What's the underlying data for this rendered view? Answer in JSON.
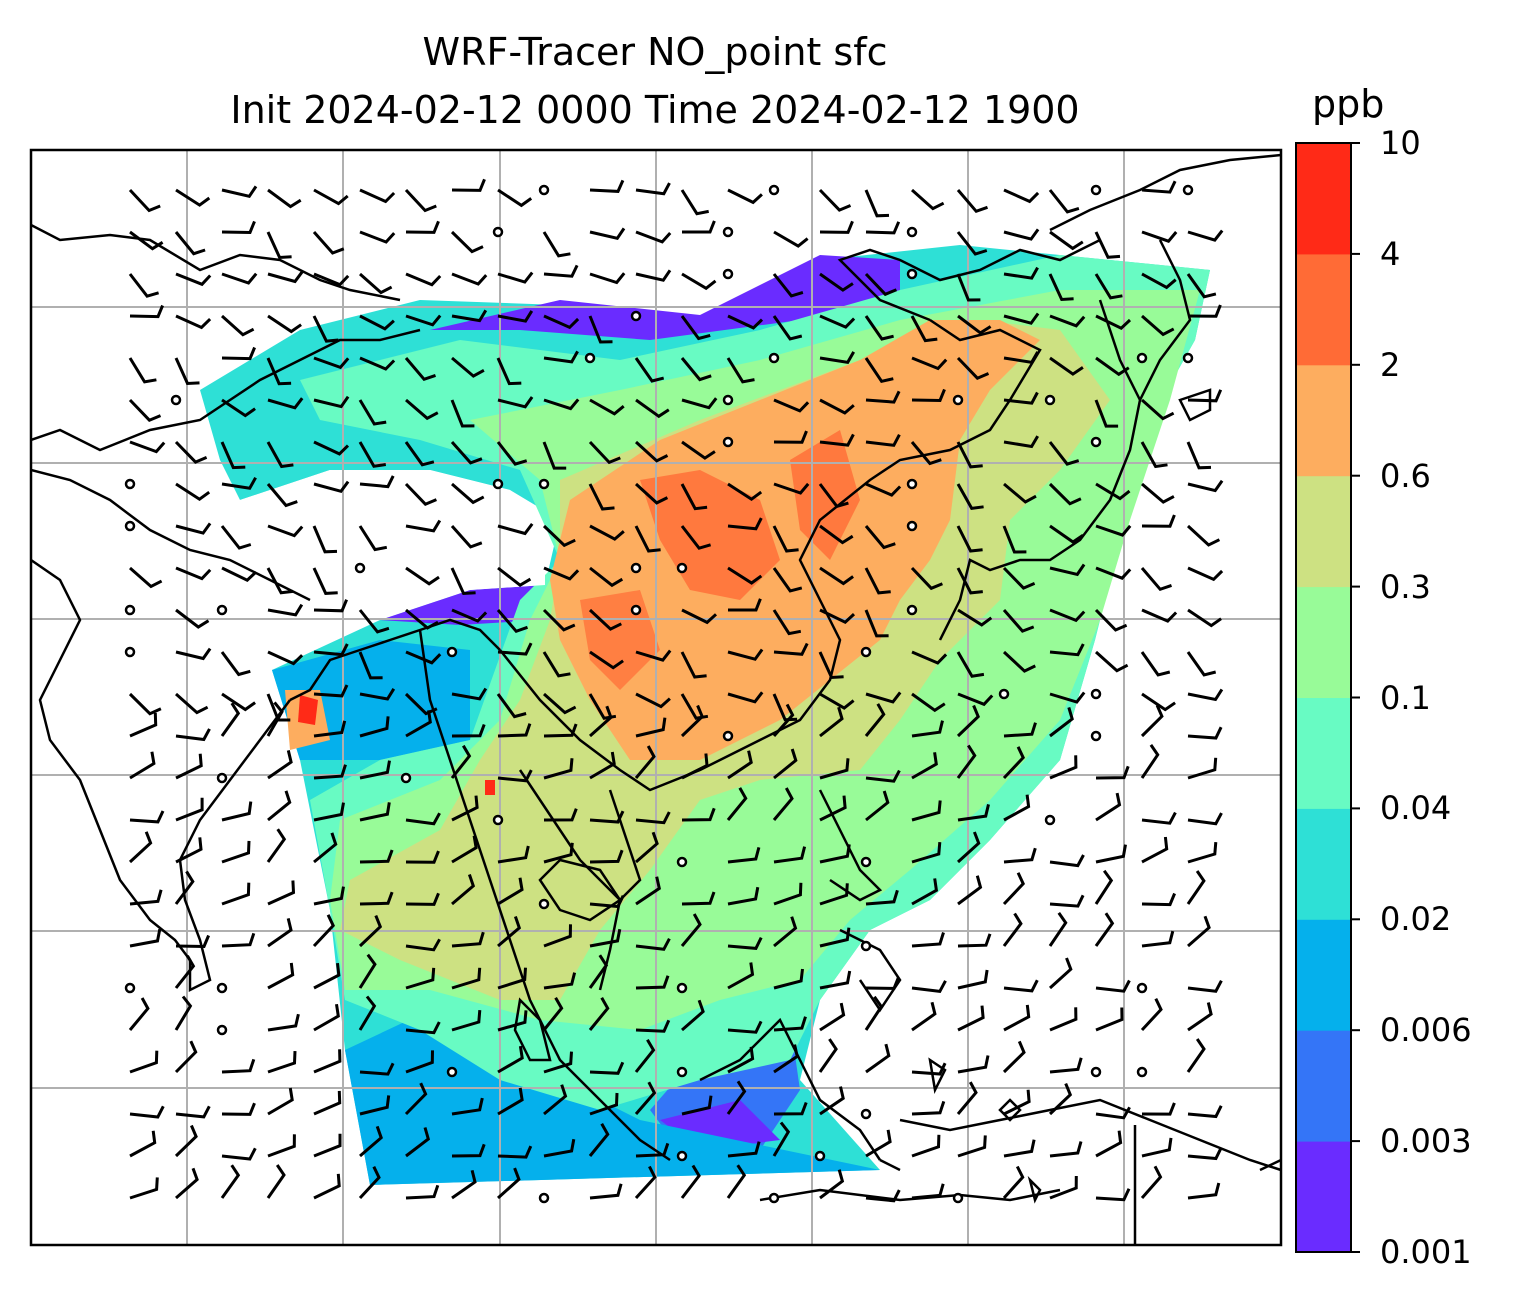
{
  "title": {
    "line1": "WRF-Tracer NO_point sfc",
    "line2": "Init 2024-02-12 0000 Time 2024-02-12 1900"
  },
  "colorbar": {
    "units": "ppb",
    "levels": [
      "0.001",
      "0.003",
      "0.006",
      "0.02",
      "0.04",
      "0.1",
      "0.3",
      "0.6",
      "2",
      "4",
      "10"
    ],
    "colors": [
      "#6a2cff",
      "#3475f7",
      "#05b0ec",
      "#2ee0d6",
      "#68fbc3",
      "#98fb98",
      "#cde182",
      "#fdad5f",
      "#ff6b36",
      "#ff2a17"
    ]
  },
  "map": {
    "tracer": "NO_point",
    "level": "sfc",
    "wind_barbs": true,
    "gridlines": true,
    "colors": {
      "coastline": "#000000",
      "gridline": "#b0b0b0",
      "frame": "#000000"
    }
  }
}
